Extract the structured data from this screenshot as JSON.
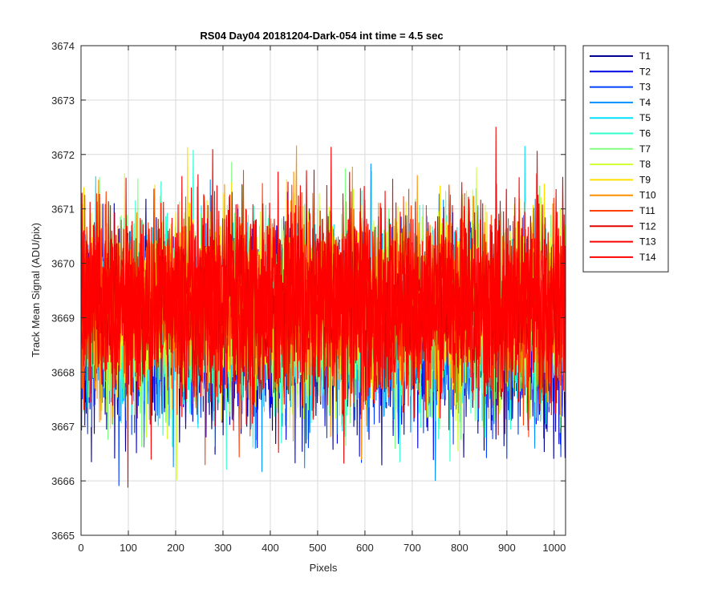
{
  "chart_data": {
    "type": "line",
    "title": "RS04 Day04 20181204-Dark-054 int time = 4.5 sec",
    "xlabel": "Pixels",
    "ylabel": "Track Mean Signal (ADU/pix)",
    "xlim": [
      0,
      1024
    ],
    "ylim": [
      3665,
      3674
    ],
    "xticks": [
      0,
      100,
      200,
      300,
      400,
      500,
      600,
      700,
      800,
      900,
      1000
    ],
    "yticks": [
      3665,
      3666,
      3667,
      3668,
      3669,
      3670,
      3671,
      3672,
      3673,
      3674
    ],
    "grid": true,
    "legend_position": "outside-top-right",
    "n_points_per_series": 1024,
    "series": [
      {
        "name": "T1",
        "color": "#00008f",
        "mean": 3668.6,
        "std": 0.85
      },
      {
        "name": "T2",
        "color": "#0000e5",
        "mean": 3668.7,
        "std": 0.85
      },
      {
        "name": "T3",
        "color": "#0040ff",
        "mean": 3668.8,
        "std": 0.85
      },
      {
        "name": "T4",
        "color": "#0090ff",
        "mean": 3668.9,
        "std": 0.85
      },
      {
        "name": "T5",
        "color": "#00dfff",
        "mean": 3669.0,
        "std": 0.85
      },
      {
        "name": "T6",
        "color": "#30ffcf",
        "mean": 3669.0,
        "std": 0.85
      },
      {
        "name": "T7",
        "color": "#80ff80",
        "mean": 3669.1,
        "std": 0.85
      },
      {
        "name": "T8",
        "color": "#cfff30",
        "mean": 3669.1,
        "std": 0.85
      },
      {
        "name": "T9",
        "color": "#ffdf00",
        "mean": 3669.2,
        "std": 0.85
      },
      {
        "name": "T10",
        "color": "#ff9000",
        "mean": 3669.2,
        "std": 0.85
      },
      {
        "name": "T11",
        "color": "#ff4000",
        "mean": 3669.2,
        "std": 0.85
      },
      {
        "name": "T12",
        "color": "#e50000",
        "mean": 3669.3,
        "std": 0.85
      },
      {
        "name": "T13",
        "color": "#ff0000",
        "mean": 3669.3,
        "std": 0.85
      },
      {
        "name": "T14",
        "color": "#ff0000",
        "mean": 3669.3,
        "std": 0.85
      }
    ]
  }
}
